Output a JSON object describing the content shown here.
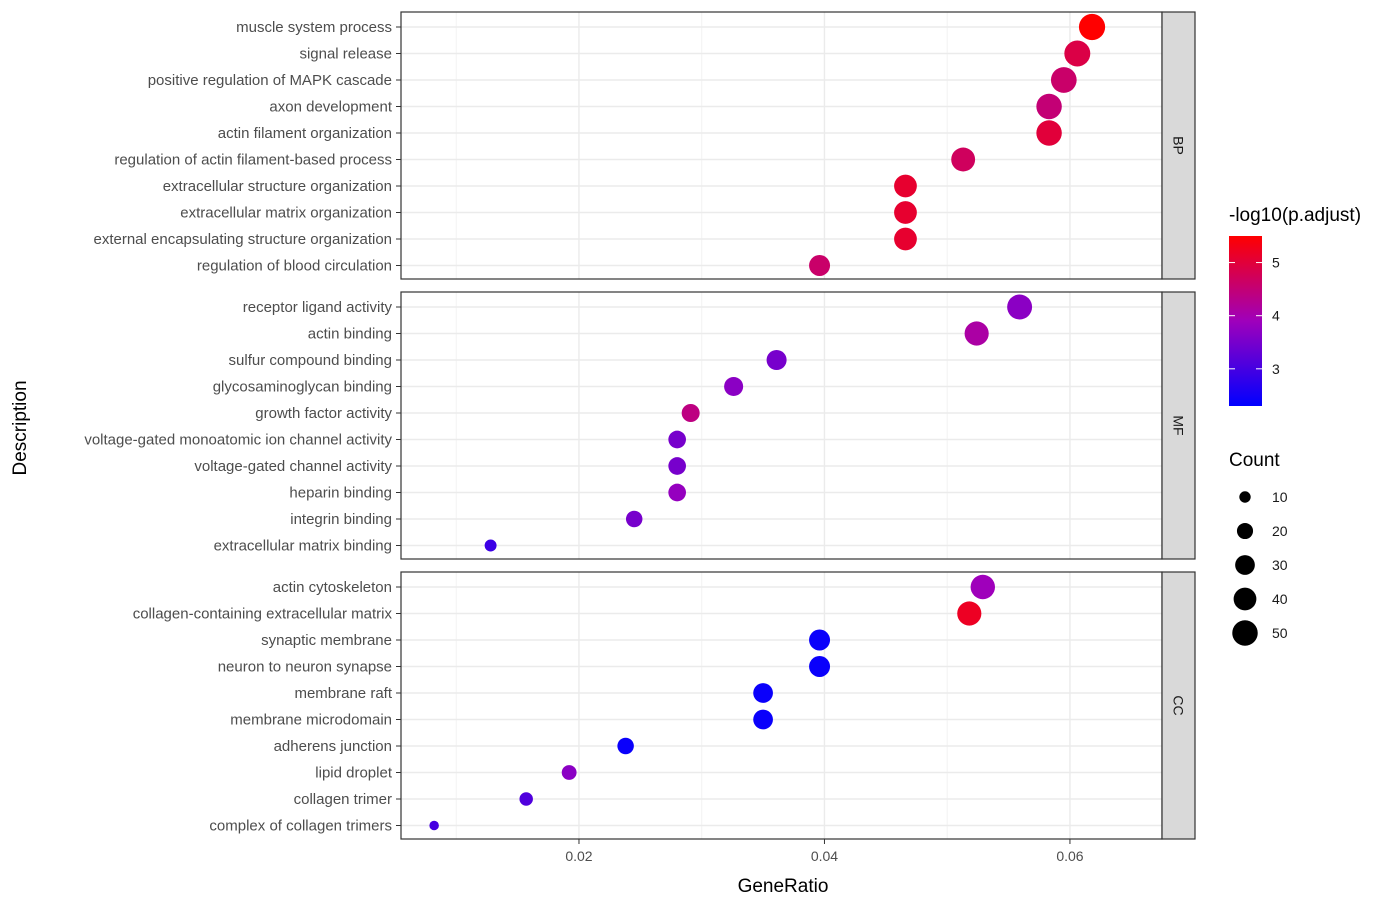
{
  "chart_data": {
    "type": "dot",
    "x_label": "GeneRatio",
    "y_label": "Description",
    "x_range": [
      0.0055,
      0.0675
    ],
    "x_ticks": [
      {
        "value": 0.02,
        "label": "0.02"
      },
      {
        "value": 0.04,
        "label": "0.04"
      },
      {
        "value": 0.06,
        "label": "0.06"
      }
    ],
    "color_legend": {
      "title": "-log10(p.adjust)",
      "min": 2.3,
      "max": 5.5,
      "low_color": "#0000ff",
      "high_color": "#ff0000",
      "ticks": [
        {
          "value": 5,
          "label": "5"
        },
        {
          "value": 4,
          "label": "4"
        },
        {
          "value": 3,
          "label": "3"
        }
      ]
    },
    "size_legend": {
      "title": "Count",
      "entries": [
        {
          "count": 10,
          "label": "10"
        },
        {
          "count": 20,
          "label": "20"
        },
        {
          "count": 30,
          "label": "30"
        },
        {
          "count": 40,
          "label": "40"
        },
        {
          "count": 50,
          "label": "50"
        }
      ]
    },
    "facets": [
      {
        "label": "BP",
        "rows": [
          {
            "term": "muscle system process",
            "gene_ratio": 0.0618,
            "count": 53,
            "neg_log10_padj": 5.5
          },
          {
            "term": "signal release",
            "gene_ratio": 0.0606,
            "count": 52,
            "neg_log10_padj": 4.9
          },
          {
            "term": "positive regulation of MAPK cascade",
            "gene_ratio": 0.0595,
            "count": 51,
            "neg_log10_padj": 4.6
          },
          {
            "term": "axon development",
            "gene_ratio": 0.0583,
            "count": 50,
            "neg_log10_padj": 4.5
          },
          {
            "term": "actin filament organization",
            "gene_ratio": 0.0583,
            "count": 50,
            "neg_log10_padj": 5.0
          },
          {
            "term": "regulation of actin filament-based process",
            "gene_ratio": 0.0513,
            "count": 44,
            "neg_log10_padj": 4.7
          },
          {
            "term": "extracellular structure organization",
            "gene_ratio": 0.0466,
            "count": 40,
            "neg_log10_padj": 5.1
          },
          {
            "term": "extracellular matrix organization",
            "gene_ratio": 0.0466,
            "count": 40,
            "neg_log10_padj": 5.1
          },
          {
            "term": "external encapsulating structure organization",
            "gene_ratio": 0.0466,
            "count": 40,
            "neg_log10_padj": 5.1
          },
          {
            "term": "regulation of blood circulation",
            "gene_ratio": 0.0396,
            "count": 34,
            "neg_log10_padj": 4.6
          }
        ]
      },
      {
        "label": "MF",
        "rows": [
          {
            "term": "receptor ligand activity",
            "gene_ratio": 0.0559,
            "count": 48,
            "neg_log10_padj": 3.7
          },
          {
            "term": "actin binding",
            "gene_ratio": 0.0524,
            "count": 45,
            "neg_log10_padj": 4.1
          },
          {
            "term": "sulfur compound binding",
            "gene_ratio": 0.0361,
            "count": 31,
            "neg_log10_padj": 3.5
          },
          {
            "term": "glycosaminoglycan binding",
            "gene_ratio": 0.0326,
            "count": 28,
            "neg_log10_padj": 3.7
          },
          {
            "term": "growth factor activity",
            "gene_ratio": 0.0291,
            "count": 25,
            "neg_log10_padj": 4.4
          },
          {
            "term": "voltage-gated monoatomic ion channel activity",
            "gene_ratio": 0.028,
            "count": 24,
            "neg_log10_padj": 3.5
          },
          {
            "term": "voltage-gated channel activity",
            "gene_ratio": 0.028,
            "count": 24,
            "neg_log10_padj": 3.5
          },
          {
            "term": "heparin binding",
            "gene_ratio": 0.028,
            "count": 24,
            "neg_log10_padj": 3.8
          },
          {
            "term": "integrin binding",
            "gene_ratio": 0.0245,
            "count": 21,
            "neg_log10_padj": 3.5
          },
          {
            "term": "extracellular matrix binding",
            "gene_ratio": 0.0128,
            "count": 11,
            "neg_log10_padj": 2.9
          }
        ]
      },
      {
        "label": "CC",
        "rows": [
          {
            "term": "actin cytoskeleton",
            "gene_ratio": 0.0529,
            "count": 46,
            "neg_log10_padj": 3.9
          },
          {
            "term": "collagen-containing extracellular matrix",
            "gene_ratio": 0.0518,
            "count": 45,
            "neg_log10_padj": 5.2
          },
          {
            "term": "synaptic membrane",
            "gene_ratio": 0.0396,
            "count": 34,
            "neg_log10_padj": 2.4
          },
          {
            "term": "neuron to neuron synapse",
            "gene_ratio": 0.0396,
            "count": 34,
            "neg_log10_padj": 2.4
          },
          {
            "term": "membrane raft",
            "gene_ratio": 0.035,
            "count": 30,
            "neg_log10_padj": 2.4
          },
          {
            "term": "membrane microdomain",
            "gene_ratio": 0.035,
            "count": 30,
            "neg_log10_padj": 2.4
          },
          {
            "term": "adherens junction",
            "gene_ratio": 0.0238,
            "count": 21,
            "neg_log10_padj": 2.4
          },
          {
            "term": "lipid droplet",
            "gene_ratio": 0.0192,
            "count": 17,
            "neg_log10_padj": 3.7
          },
          {
            "term": "collagen trimer",
            "gene_ratio": 0.0157,
            "count": 14,
            "neg_log10_padj": 3.1
          },
          {
            "term": "complex of collagen trimers",
            "gene_ratio": 0.0082,
            "count": 7,
            "neg_log10_padj": 3.0
          }
        ]
      }
    ]
  }
}
